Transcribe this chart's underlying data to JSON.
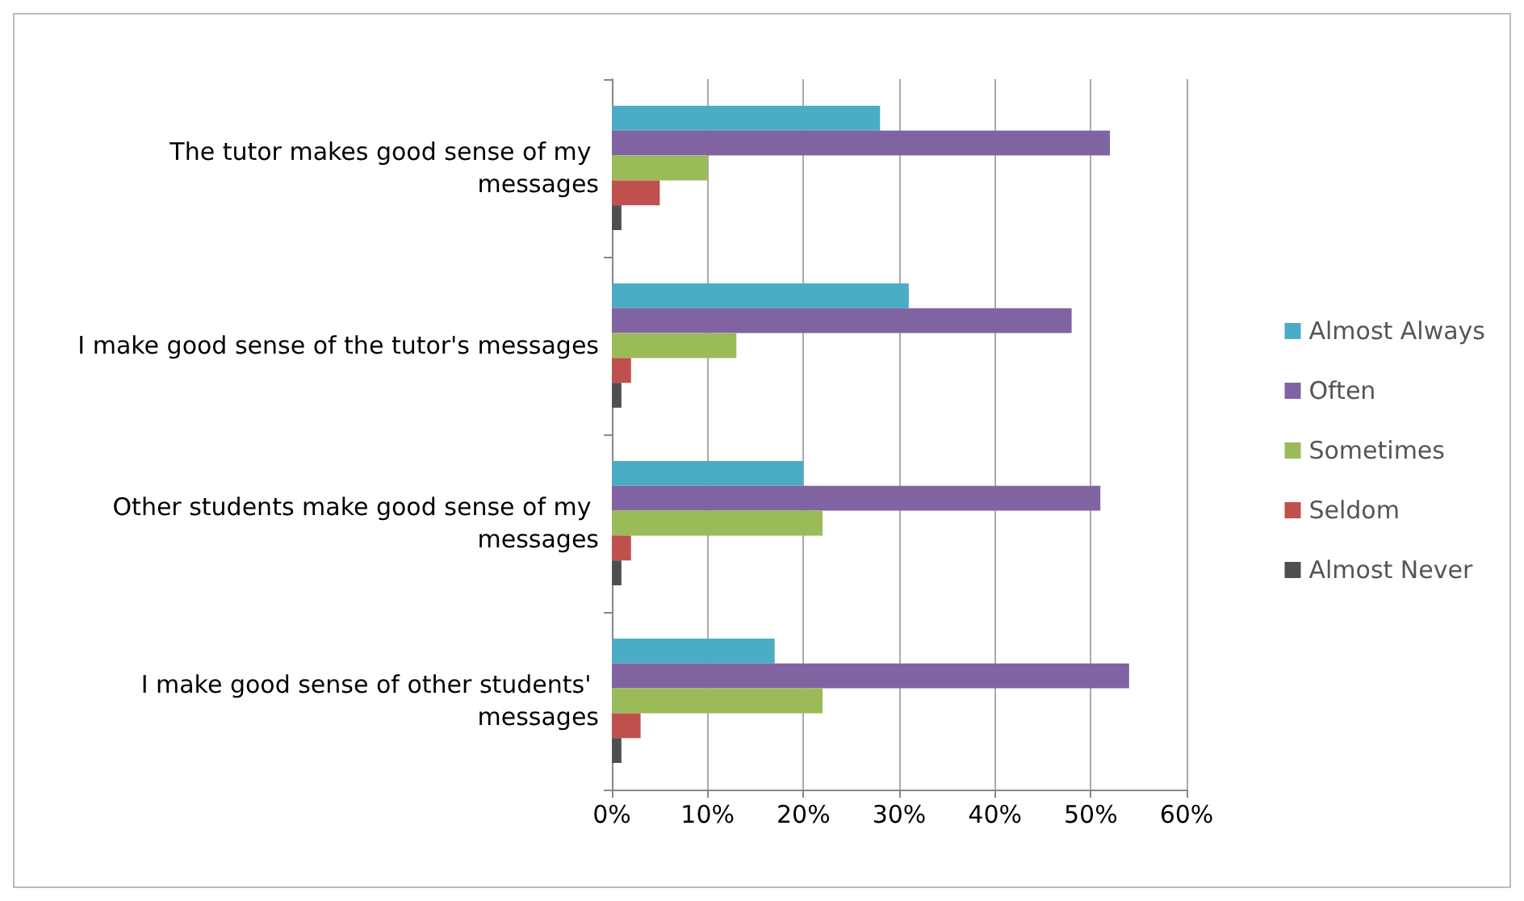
{
  "chart_data": {
    "type": "bar",
    "orientation": "horizontal",
    "categories": [
      "The tutor makes good sense of my messages",
      "I make good sense of the tutor's messages",
      "Other students make good sense of my messages",
      "I make good sense of other students' messages"
    ],
    "series": [
      {
        "name": "Almost Always",
        "color": "#4bacc6",
        "values": [
          28,
          31,
          20,
          17
        ]
      },
      {
        "name": "Often",
        "color": "#8064a2",
        "values": [
          52,
          48,
          51,
          54
        ]
      },
      {
        "name": "Sometimes",
        "color": "#9bbb59",
        "values": [
          10,
          13,
          22,
          22
        ]
      },
      {
        "name": "Seldom",
        "color": "#c0504d",
        "values": [
          5,
          2,
          2,
          3
        ]
      },
      {
        "name": "Almost Never",
        "color": "#4f4f4f",
        "values": [
          1,
          1,
          1,
          1
        ]
      }
    ],
    "xlim": [
      0,
      60
    ],
    "xticks": [
      {
        "value": 0,
        "label": "0%"
      },
      {
        "value": 10,
        "label": "10%"
      },
      {
        "value": 20,
        "label": "20%"
      },
      {
        "value": 30,
        "label": "30%"
      },
      {
        "value": 40,
        "label": "40%"
      },
      {
        "value": 50,
        "label": "50%"
      },
      {
        "value": 60,
        "label": "60%"
      }
    ],
    "grid": "x",
    "legend": "right"
  }
}
